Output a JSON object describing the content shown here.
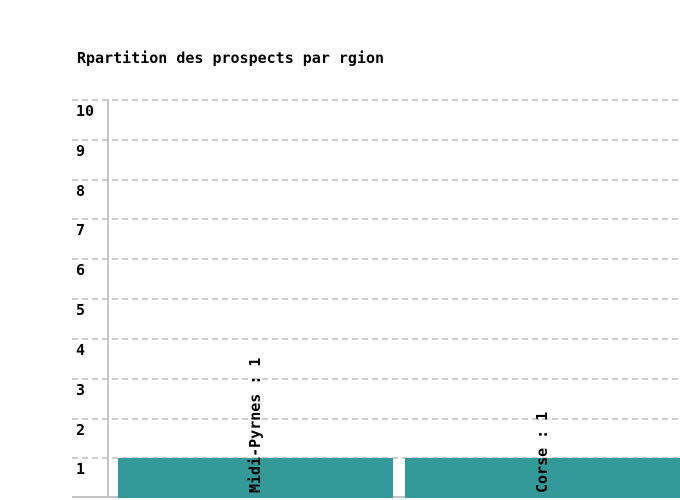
{
  "chart_data": {
    "type": "bar",
    "title": "Rpartition des prospects par rgion",
    "categories": [
      "Midi-Pyrnes",
      "Corse"
    ],
    "values": [
      1,
      1
    ],
    "bar_labels": [
      "Midi-Pyrnes : 1",
      "Corse : 1"
    ],
    "yticks": [
      1,
      2,
      3,
      4,
      5,
      6,
      7,
      8,
      9,
      10
    ],
    "ylim": [
      0,
      10
    ],
    "xlabel": "",
    "ylabel": "",
    "grid": "horizontal-dashed",
    "legend": "none",
    "bar_color": "#339a99",
    "grid_color": "#cdcdcd",
    "axis_color": "#c4c4c4",
    "text_color": "#000000",
    "background_color": "#ffffff",
    "note": "chart clipped at bottom and right edges; x-axis category labels drawn rotated inside bars"
  }
}
